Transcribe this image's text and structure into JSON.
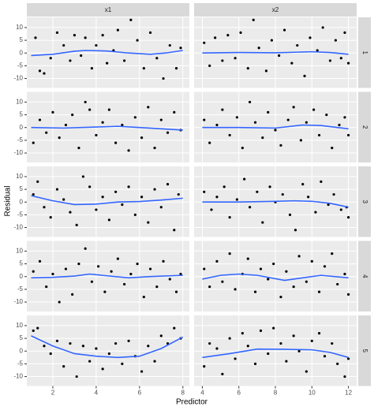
{
  "chart_data": [
    {
      "type": "scatter",
      "facet_col": "x1",
      "facet_row": "1",
      "ylabel": "Residual",
      "xlabel": "Predictor",
      "point_color": "#000000",
      "line_color": "#3366ff",
      "grid": true,
      "xlim": [
        0.8,
        8.3
      ],
      "ylim": [
        -13.7,
        14
      ],
      "xticks": [
        2,
        4,
        6,
        8
      ],
      "yticks": [
        -10,
        -5,
        0,
        5,
        10
      ],
      "x": [
        1.2,
        1.4,
        1.6,
        1.9,
        2.2,
        2.5,
        2.8,
        3.0,
        3.3,
        3.5,
        3.8,
        4.0,
        4.3,
        4.5,
        4.8,
        5.0,
        5.3,
        5.6,
        5.9,
        6.2,
        6.5,
        6.8,
        7.1,
        7.4,
        7.7,
        7.9
      ],
      "y": [
        6,
        -7,
        -8,
        -2,
        8,
        3,
        -3,
        7,
        -1,
        6,
        -6,
        3,
        7,
        -4,
        1,
        9,
        -3,
        13,
        5,
        -6,
        8,
        -2,
        -10,
        3,
        -6,
        2
      ],
      "smooth_x": [
        1,
        2,
        3,
        3.5,
        4.5,
        5.5,
        6.5,
        7.2,
        8
      ],
      "smooth_y": [
        -1,
        -0.5,
        0.7,
        1,
        0.8,
        0,
        -0.5,
        0,
        1
      ]
    },
    {
      "type": "scatter",
      "facet_col": "x2",
      "facet_row": "1",
      "point_color": "#000000",
      "line_color": "#3366ff",
      "grid": true,
      "xlim": [
        3.55,
        12.45
      ],
      "ylim": [
        -13.7,
        14
      ],
      "xticks": [
        4,
        6,
        8,
        10,
        12
      ],
      "yticks": [
        -10,
        -5,
        0,
        5,
        10
      ],
      "x": [
        4.1,
        4.4,
        4.7,
        5.1,
        5.4,
        5.8,
        6.1,
        6.5,
        6.8,
        7.1,
        7.5,
        7.8,
        8.2,
        8.5,
        8.9,
        9.2,
        9.6,
        9.9,
        10.3,
        10.6,
        11.0,
        11.3,
        11.6,
        11.8,
        12.0
      ],
      "y": [
        4,
        -5,
        6,
        -3,
        7,
        -2,
        8,
        -6,
        13,
        2,
        -7,
        5,
        -1,
        9,
        -4,
        3,
        -9,
        6,
        1,
        10,
        -3,
        5,
        -2,
        8,
        -4
      ],
      "smooth_x": [
        4,
        6,
        8,
        10,
        11,
        12
      ],
      "smooth_y": [
        0,
        0.2,
        0.1,
        0.5,
        0.2,
        -0.5
      ]
    },
    {
      "type": "scatter",
      "facet_col": "x1",
      "facet_row": "2",
      "point_color": "#000000",
      "line_color": "#3366ff",
      "grid": true,
      "xlim": [
        0.8,
        8.3
      ],
      "ylim": [
        -13.7,
        14
      ],
      "xticks": [
        2,
        4,
        6,
        8
      ],
      "yticks": [
        -10,
        -5,
        0,
        5,
        10
      ],
      "x": [
        1.1,
        1.4,
        1.7,
        2.0,
        2.3,
        2.6,
        2.9,
        3.2,
        3.5,
        3.7,
        4.0,
        4.3,
        4.6,
        4.9,
        5.2,
        5.5,
        5.8,
        6.1,
        6.4,
        6.7,
        7.0,
        7.3,
        7.6,
        7.9
      ],
      "y": [
        -6,
        3,
        -2,
        6,
        -4,
        1,
        5,
        -8,
        10,
        7,
        -3,
        2,
        7,
        -6,
        1,
        -9,
        4,
        -4,
        8,
        -8,
        3,
        -2,
        6,
        -1
      ],
      "smooth_x": [
        1,
        2.5,
        4,
        5,
        6,
        7,
        8
      ],
      "smooth_y": [
        0,
        -0.2,
        0.2,
        0.5,
        0,
        -0.5,
        -1
      ]
    },
    {
      "type": "scatter",
      "facet_col": "x2",
      "facet_row": "2",
      "point_color": "#000000",
      "line_color": "#3366ff",
      "grid": true,
      "xlim": [
        3.55,
        12.45
      ],
      "ylim": [
        -13.7,
        14
      ],
      "xticks": [
        4,
        6,
        8,
        10,
        12
      ],
      "yticks": [
        -10,
        -5,
        0,
        5,
        10
      ],
      "x": [
        4.1,
        4.4,
        4.8,
        5.1,
        5.5,
        5.9,
        6.2,
        6.6,
        6.9,
        7.3,
        7.6,
        8.0,
        8.3,
        8.7,
        9.0,
        9.4,
        9.7,
        10.1,
        10.4,
        10.8,
        11.1,
        11.5,
        11.8,
        12.0
      ],
      "y": [
        3,
        -6,
        1,
        7,
        -3,
        4,
        -8,
        10,
        2,
        -4,
        6,
        -1,
        -7,
        3,
        8,
        -5,
        2,
        7,
        -3,
        5,
        -8,
        1,
        4,
        -3
      ],
      "smooth_x": [
        4,
        6,
        8,
        9.5,
        10.5,
        12
      ],
      "smooth_y": [
        0,
        0,
        -0.2,
        1,
        0.8,
        -0.5
      ]
    },
    {
      "type": "scatter",
      "facet_col": "x1",
      "facet_row": "3",
      "point_color": "#000000",
      "line_color": "#3366ff",
      "grid": true,
      "xlim": [
        0.8,
        8.3
      ],
      "ylim": [
        -13.7,
        14
      ],
      "xticks": [
        2,
        4,
        6,
        8
      ],
      "yticks": [
        -10,
        -5,
        0,
        5,
        10
      ],
      "x": [
        1.1,
        1.3,
        1.6,
        1.9,
        2.2,
        2.5,
        2.8,
        3.1,
        3.4,
        3.7,
        4.0,
        4.3,
        4.6,
        4.9,
        5.2,
        5.5,
        5.8,
        6.1,
        6.4,
        6.7,
        7.0,
        7.3,
        7.6,
        7.8
      ],
      "y": [
        3,
        8,
        -2,
        -6,
        5,
        1,
        -4,
        -9,
        10,
        6,
        -3,
        2,
        -7,
        4,
        -1,
        6,
        -5,
        2,
        -8,
        5,
        -2,
        7,
        -11,
        3
      ],
      "smooth_x": [
        1,
        2,
        3,
        4,
        5,
        6,
        7,
        8
      ],
      "smooth_y": [
        2.5,
        0.5,
        -1,
        -0.8,
        0,
        0.2,
        0.8,
        1.5
      ]
    },
    {
      "type": "scatter",
      "facet_col": "x2",
      "facet_row": "3",
      "point_color": "#000000",
      "line_color": "#3366ff",
      "grid": true,
      "xlim": [
        3.55,
        12.45
      ],
      "ylim": [
        -13.7,
        14
      ],
      "xticks": [
        4,
        6,
        8,
        10,
        12
      ],
      "yticks": [
        -10,
        -5,
        0,
        5,
        10
      ],
      "x": [
        4.1,
        4.5,
        4.8,
        5.2,
        5.5,
        5.9,
        6.3,
        6.6,
        7.0,
        7.3,
        7.7,
        8.0,
        8.4,
        8.8,
        9.1,
        9.5,
        9.8,
        10.2,
        10.5,
        10.9,
        11.2,
        11.6,
        11.9,
        12.0
      ],
      "y": [
        4,
        -3,
        2,
        6,
        -6,
        1,
        9,
        -2,
        4,
        -8,
        6,
        0,
        3,
        -5,
        -11,
        7,
        2,
        -4,
        8,
        -1,
        3,
        -3,
        -2,
        -6
      ],
      "smooth_x": [
        4,
        6,
        8,
        9,
        10,
        11,
        12
      ],
      "smooth_y": [
        0,
        0,
        0.3,
        0.5,
        0.3,
        -0.5,
        -2
      ]
    },
    {
      "type": "scatter",
      "facet_col": "x1",
      "facet_row": "4",
      "point_color": "#000000",
      "line_color": "#3366ff",
      "grid": true,
      "xlim": [
        0.8,
        8.3
      ],
      "ylim": [
        -13.7,
        14
      ],
      "xticks": [
        2,
        4,
        6,
        8
      ],
      "yticks": [
        -10,
        -5,
        0,
        5,
        10
      ],
      "x": [
        1.1,
        1.4,
        1.7,
        2.0,
        2.3,
        2.6,
        2.9,
        3.2,
        3.5,
        3.8,
        4.1,
        4.4,
        4.7,
        5.0,
        5.3,
        5.6,
        5.9,
        6.2,
        6.5,
        6.8,
        7.1,
        7.4,
        7.7,
        7.9
      ],
      "y": [
        2,
        6,
        -4,
        1,
        -10,
        3,
        -7,
        5,
        11,
        -2,
        4,
        -6,
        2,
        7,
        -3,
        1,
        5,
        -8,
        3,
        -4,
        6,
        -1,
        -6,
        1
      ],
      "smooth_x": [
        1,
        2,
        3,
        3.7,
        4.5,
        5.5,
        6.5,
        8
      ],
      "smooth_y": [
        -0.5,
        -0.3,
        0.2,
        1,
        0.3,
        -0.5,
        0,
        0.5
      ]
    },
    {
      "type": "scatter",
      "facet_col": "x2",
      "facet_row": "4",
      "point_color": "#000000",
      "line_color": "#3366ff",
      "grid": true,
      "xlim": [
        3.55,
        12.45
      ],
      "ylim": [
        -13.7,
        14
      ],
      "xticks": [
        4,
        6,
        8,
        10,
        12
      ],
      "yticks": [
        -10,
        -5,
        0,
        5,
        10
      ],
      "x": [
        4.1,
        4.4,
        4.8,
        5.1,
        5.5,
        5.8,
        6.2,
        6.5,
        6.9,
        7.2,
        7.6,
        7.9,
        8.3,
        8.6,
        9.0,
        9.3,
        9.7,
        10.0,
        10.4,
        10.7,
        11.1,
        11.4,
        11.8,
        12.0
      ],
      "y": [
        3,
        -4,
        6,
        -2,
        9,
        -5,
        1,
        7,
        -6,
        3,
        -1,
        5,
        -8,
        2,
        -4,
        8,
        -2,
        6,
        -6,
        4,
        9,
        -3,
        1,
        -7
      ],
      "smooth_x": [
        4,
        5,
        6,
        7,
        8.5,
        9.5,
        10.5,
        12
      ],
      "smooth_y": [
        -1,
        0.5,
        1,
        0.5,
        -1.5,
        -0.5,
        0.5,
        -0.5
      ]
    },
    {
      "type": "scatter",
      "facet_col": "x1",
      "facet_row": "5",
      "point_color": "#000000",
      "line_color": "#3366ff",
      "grid": true,
      "xlim": [
        0.8,
        8.3
      ],
      "ylim": [
        -13.7,
        14
      ],
      "xticks": [
        2,
        4,
        6,
        8
      ],
      "yticks": [
        -10,
        -5,
        0,
        5,
        10
      ],
      "x": [
        1.1,
        1.3,
        1.6,
        1.9,
        2.2,
        2.5,
        2.8,
        3.1,
        3.4,
        3.7,
        4.0,
        4.3,
        4.6,
        4.9,
        5.2,
        5.5,
        5.8,
        6.1,
        6.4,
        6.7,
        7.0,
        7.3,
        7.6,
        7.9
      ],
      "y": [
        8,
        9,
        2,
        -1,
        4,
        -6,
        3,
        -10,
        2,
        -4,
        1,
        -7,
        -1,
        3,
        -5,
        4,
        -2,
        -8,
        2,
        -4,
        6,
        3,
        9,
        5
      ],
      "smooth_x": [
        1,
        2,
        3,
        4,
        5,
        6,
        7,
        8
      ],
      "smooth_y": [
        6,
        2,
        -1,
        -2,
        -2.5,
        -2,
        1,
        5.5
      ]
    },
    {
      "type": "scatter",
      "facet_col": "x2",
      "facet_row": "5",
      "point_color": "#000000",
      "line_color": "#3366ff",
      "grid": true,
      "xlim": [
        3.55,
        12.45
      ],
      "ylim": [
        -13.7,
        14
      ],
      "xticks": [
        4,
        6,
        8,
        10,
        12
      ],
      "yticks": [
        -10,
        -5,
        0,
        5,
        10
      ],
      "x": [
        4.1,
        4.4,
        4.8,
        5.1,
        5.5,
        5.8,
        6.2,
        6.5,
        6.9,
        7.2,
        7.6,
        7.9,
        8.3,
        8.6,
        9.0,
        9.3,
        9.7,
        10.0,
        10.4,
        10.7,
        11.1,
        11.4,
        11.8,
        12.0
      ],
      "y": [
        -6,
        3,
        1,
        -9,
        5,
        -3,
        7,
        2,
        -5,
        8,
        -1,
        9,
        3,
        -4,
        6,
        0,
        -8,
        4,
        7,
        -2,
        3,
        -5,
        -10,
        -3
      ],
      "smooth_x": [
        4,
        5.5,
        7,
        8.5,
        10,
        11,
        12
      ],
      "smooth_y": [
        -2.5,
        -1,
        0.8,
        0.7,
        0.5,
        -0.5,
        -2.5
      ]
    }
  ]
}
